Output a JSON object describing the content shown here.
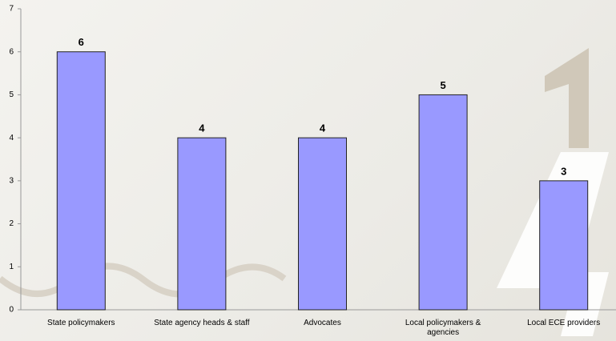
{
  "chart_data": {
    "type": "bar",
    "categories": [
      "State policymakers",
      "State agency heads & staff",
      "Advocates",
      "Local policymakers & agencies",
      "Local ECE providers"
    ],
    "values": [
      6,
      4,
      4,
      5,
      3
    ],
    "color": "#9999ff",
    "ylim": [
      0,
      7
    ],
    "yticks": [
      0,
      1,
      2,
      3,
      4,
      5,
      6,
      7
    ],
    "grid": false
  }
}
